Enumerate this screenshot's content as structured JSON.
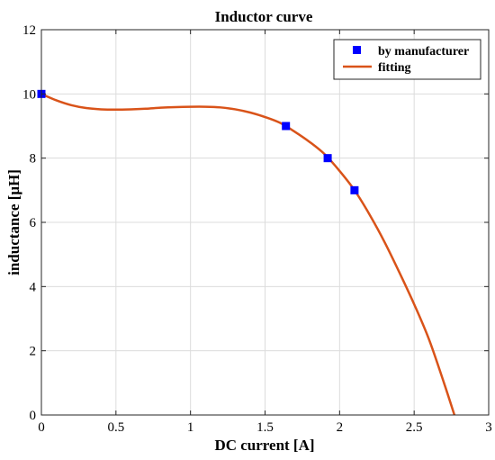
{
  "chart_data": {
    "type": "scatter",
    "title": "Inductor curve",
    "xlabel": "DC current [A]",
    "ylabel": "inductance [μH]",
    "xlim": [
      0,
      3
    ],
    "ylim": [
      0,
      12
    ],
    "xticks": [
      0,
      0.5,
      1,
      1.5,
      2,
      2.5,
      3
    ],
    "xtick_labels": [
      "0",
      "0.5",
      "1",
      "1.5",
      "2",
      "2.5",
      "3"
    ],
    "yticks": [
      0,
      2,
      4,
      6,
      8,
      10,
      12
    ],
    "ytick_labels": [
      "0",
      "2",
      "4",
      "6",
      "8",
      "10",
      "12"
    ],
    "grid": true,
    "legend_position": "top-right",
    "series": [
      {
        "name": "by manufacturer",
        "kind": "markers",
        "marker": "square",
        "color": "#0000FF",
        "x": [
          0,
          1.64,
          1.92,
          2.1
        ],
        "y": [
          10,
          9,
          8,
          7
        ]
      },
      {
        "name": "fitting",
        "kind": "line",
        "color": "#D95319",
        "x": [
          0,
          0.1,
          0.2,
          0.3,
          0.4,
          0.5,
          0.6,
          0.7,
          0.8,
          0.9,
          1.0,
          1.1,
          1.2,
          1.3,
          1.4,
          1.5,
          1.6,
          1.7,
          1.8,
          1.9,
          2.0,
          2.1,
          2.2,
          2.3,
          2.4,
          2.5,
          2.6,
          2.7,
          2.77
        ],
        "y": [
          10.0,
          9.8,
          9.65,
          9.56,
          9.52,
          9.51,
          9.52,
          9.54,
          9.57,
          9.59,
          9.6,
          9.6,
          9.58,
          9.52,
          9.42,
          9.28,
          9.1,
          8.82,
          8.5,
          8.12,
          7.6,
          7.0,
          6.25,
          5.4,
          4.45,
          3.45,
          2.35,
          1.0,
          0.0
        ]
      }
    ]
  }
}
